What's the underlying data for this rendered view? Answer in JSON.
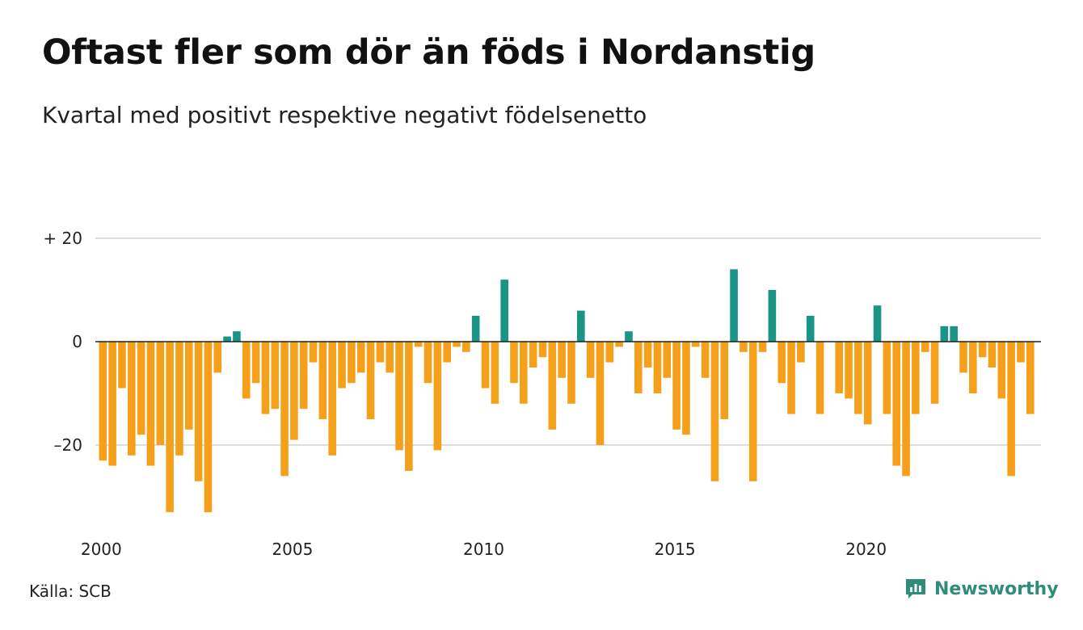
{
  "title": "Oftast fler som dör än föds i Nordanstig",
  "subtitle": "Kvartal med positivt respektive negativt födelsenetto",
  "source": "Källa: SCB",
  "brand": {
    "name": "Newsworthy",
    "icon": "newsworthy-logo-icon",
    "color": "#2f8c79"
  },
  "colors": {
    "positive": "#1a9585",
    "negative": "#f5a01a",
    "grid": "#dddddd",
    "zero_line": "#222222"
  },
  "chart_data": {
    "type": "bar",
    "title": "Oftast fler som dör än föds i Nordanstig",
    "subtitle": "Kvartal med positivt respektive negativt födelsenetto",
    "xlabel": "",
    "ylabel": "",
    "ylim": [
      -36,
      25
    ],
    "y_ticks": [
      {
        "value": 20,
        "label": "+ 20"
      },
      {
        "value": 0,
        "label": "0"
      },
      {
        "value": -20,
        "label": "–20"
      }
    ],
    "x_ticks": [
      {
        "value": 2000,
        "label": "2000"
      },
      {
        "value": 2005,
        "label": "2005"
      },
      {
        "value": 2010,
        "label": "2010"
      },
      {
        "value": 2015,
        "label": "2015"
      },
      {
        "value": 2020,
        "label": "2020"
      }
    ],
    "grid": true,
    "start_year": 2000,
    "values": [
      -23,
      -24,
      -9,
      -22,
      -18,
      -24,
      -20,
      -33,
      -22,
      -17,
      -27,
      -33,
      -6,
      1,
      2,
      -11,
      -8,
      -14,
      -13,
      -26,
      -19,
      -13,
      -4,
      -15,
      -22,
      -9,
      -8,
      -6,
      -15,
      -4,
      -6,
      -21,
      -25,
      -1,
      -8,
      -21,
      -4,
      -1,
      -2,
      5,
      -9,
      -12,
      12,
      -8,
      -12,
      -5,
      -3,
      -17,
      -7,
      -12,
      6,
      -7,
      -20,
      -4,
      -1,
      2,
      -10,
      -5,
      -10,
      -7,
      -17,
      -18,
      -1,
      -7,
      -27,
      -15,
      14,
      -2,
      -27,
      -2,
      10,
      -8,
      -14,
      -4,
      5,
      -14,
      0,
      -10,
      -11,
      -14,
      -16,
      7,
      -14,
      -24,
      -26,
      -14,
      -2,
      -12,
      3,
      3,
      -6,
      -10,
      -3,
      -5,
      -11,
      -26,
      -4,
      -14
    ]
  }
}
